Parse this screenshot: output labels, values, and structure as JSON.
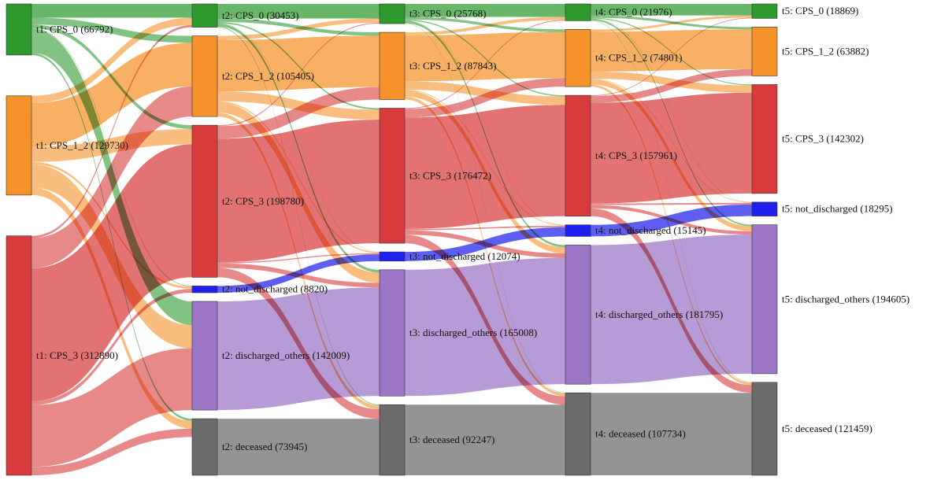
{
  "colors": {
    "CPS_0": "#2e9a2e",
    "CPS_1_2": "#f5922a",
    "CPS_3": "#d83b3b",
    "not_discharged": "#2020ee",
    "discharged_others": "#9b75c6",
    "deceased": "#6b6b6b"
  },
  "states": [
    "CPS_0",
    "CPS_1_2",
    "CPS_3",
    "not_discharged",
    "discharged_others",
    "deceased"
  ],
  "columns": [
    {
      "time": "t1",
      "nodes": [
        {
          "state": "CPS_0",
          "label": "t1: CPS_0 (66792)",
          "value": 66792
        },
        {
          "state": "CPS_1_2",
          "label": "t1: CPS_1_2 (129730)",
          "value": 129730
        },
        {
          "state": "CPS_3",
          "label": "t1: CPS_3 (312890)",
          "value": 312890
        }
      ]
    },
    {
      "time": "t2",
      "nodes": [
        {
          "state": "CPS_0",
          "label": "t2: CPS_0 (30453)",
          "value": 30453
        },
        {
          "state": "CPS_1_2",
          "label": "t2: CPS_1_2 (105405)",
          "value": 105405
        },
        {
          "state": "CPS_3",
          "label": "t2: CPS_3 (198780)",
          "value": 198780
        },
        {
          "state": "not_discharged",
          "label": "t2: not_discharged (8820)",
          "value": 8820
        },
        {
          "state": "discharged_others",
          "label": "t2: discharged_others (142009)",
          "value": 142009
        },
        {
          "state": "deceased",
          "label": "t2: deceased (73945)",
          "value": 73945
        }
      ]
    },
    {
      "time": "t3",
      "nodes": [
        {
          "state": "CPS_0",
          "label": "t3: CPS_0 (25768)",
          "value": 25768
        },
        {
          "state": "CPS_1_2",
          "label": "t3: CPS_1_2 (87843)",
          "value": 87843
        },
        {
          "state": "CPS_3",
          "label": "t3: CPS_3 (176472)",
          "value": 176472
        },
        {
          "state": "not_discharged",
          "label": "t3: not_discharged (12074)",
          "value": 12074
        },
        {
          "state": "discharged_others",
          "label": "t3: discharged_others (165008)",
          "value": 165008
        },
        {
          "state": "deceased",
          "label": "t3: deceased (92247)",
          "value": 92247
        }
      ]
    },
    {
      "time": "t4",
      "nodes": [
        {
          "state": "CPS_0",
          "label": "t4: CPS_0 (21976)",
          "value": 21976
        },
        {
          "state": "CPS_1_2",
          "label": "t4: CPS_1_2 (74801)",
          "value": 74801
        },
        {
          "state": "CPS_3",
          "label": "t4: CPS_3 (157961)",
          "value": 157961
        },
        {
          "state": "not_discharged",
          "label": "t4: not_discharged (15145)",
          "value": 15145
        },
        {
          "state": "discharged_others",
          "label": "t4: discharged_others (181795)",
          "value": 181795
        },
        {
          "state": "deceased",
          "label": "t4: deceased (107734)",
          "value": 107734
        }
      ]
    },
    {
      "time": "t5",
      "nodes": [
        {
          "state": "CPS_0",
          "label": "t5: CPS_0 (18869)",
          "value": 18869
        },
        {
          "state": "CPS_1_2",
          "label": "t5: CPS_1_2 (63882)",
          "value": 63882
        },
        {
          "state": "CPS_3",
          "label": "t5: CPS_3 (142302)",
          "value": 142302
        },
        {
          "state": "not_discharged",
          "label": "t5: not_discharged (18295)",
          "value": 18295
        },
        {
          "state": "discharged_others",
          "label": "t5: discharged_others (194605)",
          "value": 194605
        },
        {
          "state": "deceased",
          "label": "t5: deceased (121459)",
          "value": 121459
        }
      ]
    }
  ],
  "flows": [
    [
      {
        "from": "CPS_0",
        "to": "CPS_0",
        "value": 18000
      },
      {
        "from": "CPS_0",
        "to": "CPS_1_2",
        "value": 9000
      },
      {
        "from": "CPS_0",
        "to": "CPS_3",
        "value": 5000
      },
      {
        "from": "CPS_0",
        "to": "not_discharged",
        "value": 800
      },
      {
        "from": "CPS_0",
        "to": "discharged_others",
        "value": 30992
      },
      {
        "from": "CPS_0",
        "to": "deceased",
        "value": 3000
      },
      {
        "from": "CPS_1_2",
        "to": "CPS_0",
        "value": 9500
      },
      {
        "from": "CPS_1_2",
        "to": "CPS_1_2",
        "value": 57000
      },
      {
        "from": "CPS_1_2",
        "to": "CPS_3",
        "value": 20000
      },
      {
        "from": "CPS_1_2",
        "to": "not_discharged",
        "value": 3000
      },
      {
        "from": "CPS_1_2",
        "to": "discharged_others",
        "value": 30230
      },
      {
        "from": "CPS_1_2",
        "to": "deceased",
        "value": 10000
      },
      {
        "from": "CPS_3",
        "to": "CPS_0",
        "value": 2953
      },
      {
        "from": "CPS_3",
        "to": "CPS_1_2",
        "value": 39405
      },
      {
        "from": "CPS_3",
        "to": "CPS_3",
        "value": 173780
      },
      {
        "from": "CPS_3",
        "to": "not_discharged",
        "value": 5020
      },
      {
        "from": "CPS_3",
        "to": "discharged_others",
        "value": 80787
      },
      {
        "from": "CPS_3",
        "to": "deceased",
        "value": 10945
      }
    ],
    [
      {
        "from": "CPS_0",
        "to": "CPS_0",
        "value": 19000
      },
      {
        "from": "CPS_0",
        "to": "CPS_1_2",
        "value": 4500
      },
      {
        "from": "CPS_0",
        "to": "CPS_3",
        "value": 2000
      },
      {
        "from": "CPS_0",
        "to": "not_discharged",
        "value": 300
      },
      {
        "from": "CPS_0",
        "to": "discharged_others",
        "value": 3653
      },
      {
        "from": "CPS_0",
        "to": "deceased",
        "value": 1000
      },
      {
        "from": "CPS_1_2",
        "to": "CPS_0",
        "value": 5500
      },
      {
        "from": "CPS_1_2",
        "to": "CPS_1_2",
        "value": 67000
      },
      {
        "from": "CPS_1_2",
        "to": "CPS_3",
        "value": 13000
      },
      {
        "from": "CPS_1_2",
        "to": "not_discharged",
        "value": 1500
      },
      {
        "from": "CPS_1_2",
        "to": "discharged_others",
        "value": 13405
      },
      {
        "from": "CPS_1_2",
        "to": "deceased",
        "value": 5000
      },
      {
        "from": "CPS_3",
        "to": "CPS_0",
        "value": 1268
      },
      {
        "from": "CPS_3",
        "to": "CPS_1_2",
        "value": 16343
      },
      {
        "from": "CPS_3",
        "to": "CPS_3",
        "value": 161472
      },
      {
        "from": "CPS_3",
        "to": "not_discharged",
        "value": 1454
      },
      {
        "from": "CPS_3",
        "to": "discharged_others",
        "value": 5941
      },
      {
        "from": "CPS_3",
        "to": "deceased",
        "value": 12302
      },
      {
        "from": "not_discharged",
        "to": "not_discharged",
        "value": 8820
      },
      {
        "from": "discharged_others",
        "to": "discharged_others",
        "value": 142009
      },
      {
        "from": "deceased",
        "to": "deceased",
        "value": 73945
      }
    ],
    [
      {
        "from": "CPS_0",
        "to": "CPS_0",
        "value": 17000
      },
      {
        "from": "CPS_0",
        "to": "CPS_1_2",
        "value": 3500
      },
      {
        "from": "CPS_0",
        "to": "CPS_3",
        "value": 1500
      },
      {
        "from": "CPS_0",
        "to": "not_discharged",
        "value": 300
      },
      {
        "from": "CPS_0",
        "to": "discharged_others",
        "value": 2968
      },
      {
        "from": "CPS_0",
        "to": "deceased",
        "value": 500
      },
      {
        "from": "CPS_1_2",
        "to": "CPS_0",
        "value": 4000
      },
      {
        "from": "CPS_1_2",
        "to": "CPS_1_2",
        "value": 60000
      },
      {
        "from": "CPS_1_2",
        "to": "CPS_3",
        "value": 11000
      },
      {
        "from": "CPS_1_2",
        "to": "not_discharged",
        "value": 1000
      },
      {
        "from": "CPS_1_2",
        "to": "discharged_others",
        "value": 7843
      },
      {
        "from": "CPS_1_2",
        "to": "deceased",
        "value": 4000
      },
      {
        "from": "CPS_3",
        "to": "CPS_0",
        "value": 976
      },
      {
        "from": "CPS_3",
        "to": "CPS_1_2",
        "value": 11301
      },
      {
        "from": "CPS_3",
        "to": "CPS_3",
        "value": 145461
      },
      {
        "from": "CPS_3",
        "to": "not_discharged",
        "value": 1771
      },
      {
        "from": "CPS_3",
        "to": "discharged_others",
        "value": 5976
      },
      {
        "from": "CPS_3",
        "to": "deceased",
        "value": 10987
      },
      {
        "from": "not_discharged",
        "to": "not_discharged",
        "value": 12074
      },
      {
        "from": "discharged_others",
        "to": "discharged_others",
        "value": 165008
      },
      {
        "from": "deceased",
        "to": "deceased",
        "value": 92247
      }
    ],
    [
      {
        "from": "CPS_0",
        "to": "CPS_0",
        "value": 15000
      },
      {
        "from": "CPS_0",
        "to": "CPS_1_2",
        "value": 3000
      },
      {
        "from": "CPS_0",
        "to": "CPS_3",
        "value": 1200
      },
      {
        "from": "CPS_0",
        "to": "not_discharged",
        "value": 300
      },
      {
        "from": "CPS_0",
        "to": "discharged_others",
        "value": 1976
      },
      {
        "from": "CPS_0",
        "to": "deceased",
        "value": 500
      },
      {
        "from": "CPS_1_2",
        "to": "CPS_0",
        "value": 3000
      },
      {
        "from": "CPS_1_2",
        "to": "CPS_1_2",
        "value": 52000
      },
      {
        "from": "CPS_1_2",
        "to": "CPS_3",
        "value": 9500
      },
      {
        "from": "CPS_1_2",
        "to": "not_discharged",
        "value": 800
      },
      {
        "from": "CPS_1_2",
        "to": "discharged_others",
        "value": 6501
      },
      {
        "from": "CPS_1_2",
        "to": "deceased",
        "value": 3000
      },
      {
        "from": "CPS_3",
        "to": "CPS_0",
        "value": 869
      },
      {
        "from": "CPS_3",
        "to": "CPS_1_2",
        "value": 8882
      },
      {
        "from": "CPS_3",
        "to": "CPS_3",
        "value": 131602
      },
      {
        "from": "CPS_3",
        "to": "not_discharged",
        "value": 2050
      },
      {
        "from": "CPS_3",
        "to": "discharged_others",
        "value": 4333
      },
      {
        "from": "CPS_3",
        "to": "deceased",
        "value": 10225
      },
      {
        "from": "not_discharged",
        "to": "not_discharged",
        "value": 15145
      },
      {
        "from": "discharged_others",
        "to": "discharged_others",
        "value": 181795
      },
      {
        "from": "deceased",
        "to": "deceased",
        "value": 107734
      }
    ]
  ]
}
